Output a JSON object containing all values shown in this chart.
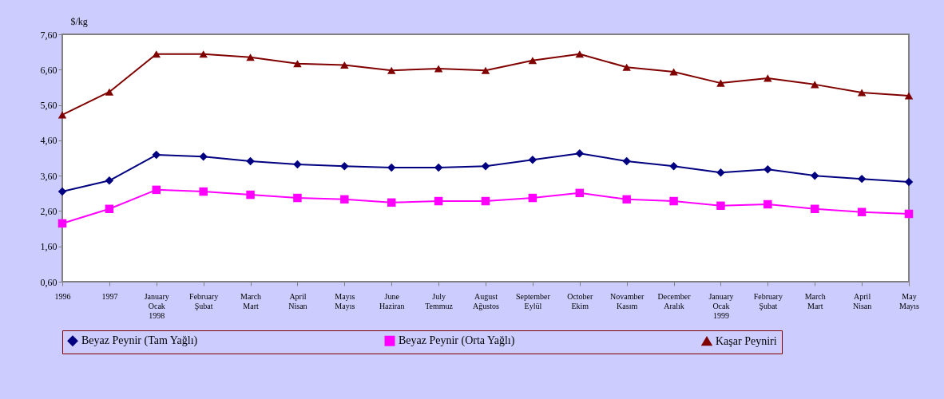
{
  "chart_data": {
    "type": "line",
    "ylabel": "$/kg",
    "categories": [
      "1996",
      "1997",
      "January\nOcak\n1998",
      "February\nŞubat",
      "March\nMart",
      "April\nNisan",
      "Mayıs\nMayıs",
      "June\nHaziran",
      "July\nTemmuz",
      "August\nAğustos",
      "September\nEylül",
      "October\nEkim",
      "Novamber\nKasım",
      "December\nAralık",
      "January\nOcak\n1999",
      "February\nŞubat ",
      "March\nMart ",
      "April\nNisan ",
      "May\nMayıs"
    ],
    "series": [
      {
        "name": "Beyaz Peynir (Tam Yağlı)",
        "color": "#000080",
        "marker": "diamond",
        "values": [
          3.15,
          3.46,
          4.19,
          4.14,
          4.01,
          3.92,
          3.87,
          3.83,
          3.83,
          3.87,
          4.05,
          4.23,
          4.01,
          3.87,
          3.69,
          3.78,
          3.6,
          3.51,
          3.42
        ]
      },
      {
        "name": "Beyaz Peynir (Orta Yağlı)",
        "color": "#ff00ff",
        "marker": "square",
        "values": [
          2.25,
          2.66,
          3.2,
          3.15,
          3.06,
          2.97,
          2.93,
          2.84,
          2.88,
          2.88,
          2.97,
          3.11,
          2.93,
          2.88,
          2.75,
          2.79,
          2.66,
          2.57,
          2.52
        ]
      },
      {
        "name": "Kaşar Peyniri",
        "color": "#800000",
        "marker": "triangle",
        "values": [
          5.32,
          5.97,
          7.04,
          7.04,
          6.95,
          6.77,
          6.73,
          6.58,
          6.63,
          6.58,
          6.86,
          7.04,
          6.67,
          6.54,
          6.22,
          6.36,
          6.18,
          5.95,
          5.86
        ]
      }
    ],
    "ylim": [
      0.6,
      7.6
    ],
    "yticks": [
      {
        "value": 0.6,
        "label": "0,60"
      },
      {
        "value": 1.6,
        "label": "1,60"
      },
      {
        "value": 2.6,
        "label": "2,60"
      },
      {
        "value": 3.6,
        "label": "3,60"
      },
      {
        "value": 4.6,
        "label": "4,60"
      },
      {
        "value": 5.6,
        "label": "5,60"
      },
      {
        "value": 6.6,
        "label": "6,60"
      },
      {
        "value": 7.6,
        "label": "7,60"
      }
    ],
    "grid": false,
    "legend": "bottom",
    "line_style": "solid"
  }
}
